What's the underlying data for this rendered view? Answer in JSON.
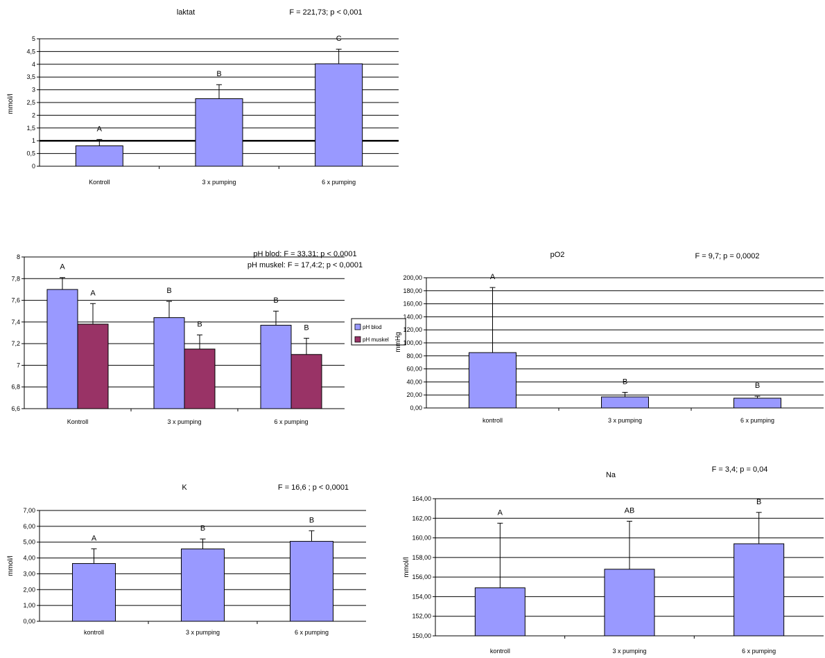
{
  "chart_data": [
    {
      "id": "laktat",
      "type": "bar",
      "title": "laktat",
      "stat": "F = 221,73; p < 0,001",
      "ylabel": "mmol/l",
      "ylim": [
        0,
        5
      ],
      "ytick_step": 0.5,
      "ytick_labels": [
        "0",
        "0,5",
        "1",
        "1,5",
        "2",
        "2,5",
        "3",
        "3,5",
        "4",
        "4,5",
        "5"
      ],
      "categories": [
        "Kontroll",
        "3 x pumping",
        "6 x pumping"
      ],
      "series": [
        {
          "values": [
            0.8,
            2.65,
            4.02
          ],
          "errors": [
            0.25,
            0.55,
            0.57
          ],
          "labels": [
            "A",
            "B",
            "C"
          ],
          "color": "#9999ff"
        }
      ],
      "reference_line": 1,
      "grid": true
    },
    {
      "id": "ph",
      "type": "bar",
      "title": "",
      "stat_lines": [
        "pH blod: F = 33,31; p < 0,0001",
        "pH muskel: F = 17,4:2; p < 0,0001"
      ],
      "ylabel": "",
      "ylim": [
        6.6,
        8
      ],
      "ytick_step": 0.2,
      "ytick_labels": [
        "6,6",
        "6,8",
        "7",
        "7,2",
        "7,4",
        "7,6",
        "7,8",
        "8"
      ],
      "categories": [
        "Kontroll",
        "3 x pumping",
        "6 x pumping"
      ],
      "series": [
        {
          "name": "pH blod",
          "values": [
            7.7,
            7.44,
            7.37
          ],
          "errors": [
            0.11,
            0.15,
            0.13
          ],
          "labels": [
            "A",
            "B",
            "B"
          ],
          "color": "#9999ff"
        },
        {
          "name": "pH muskel",
          "values": [
            7.38,
            7.15,
            7.1
          ],
          "errors": [
            0.19,
            0.13,
            0.15
          ],
          "labels": [
            "A",
            "B",
            "B"
          ],
          "color": "#993366"
        }
      ],
      "legend": "right",
      "grid": true
    },
    {
      "id": "po2",
      "type": "bar",
      "title": "pO2",
      "stat": "F = 9,7; p = 0,0002",
      "ylabel": "mmHg",
      "ylim": [
        0,
        200
      ],
      "ytick_step": 20,
      "ytick_labels": [
        "0,00",
        "20,00",
        "40,00",
        "60,00",
        "80,00",
        "100,00",
        "120,00",
        "140,00",
        "160,00",
        "180,00",
        "200,00"
      ],
      "categories": [
        "kontroll",
        "3 x pumping",
        "6 x pumping"
      ],
      "series": [
        {
          "values": [
            85,
            17,
            15
          ],
          "errors": [
            100,
            7,
            3
          ],
          "labels": [
            "A",
            "B",
            "B"
          ],
          "color": "#9999ff"
        }
      ],
      "grid": true
    },
    {
      "id": "k",
      "type": "bar",
      "title": "K",
      "stat": "F = 16,6 ; p < 0,0001",
      "ylabel": "mmol/l",
      "ylim": [
        0,
        7
      ],
      "ytick_step": 1,
      "ytick_labels": [
        "0,00",
        "1,00",
        "2,00",
        "3,00",
        "4,00",
        "5,00",
        "6,00",
        "7,00"
      ],
      "categories": [
        "kontroll",
        "3 x pumping",
        "6 x pumping"
      ],
      "series": [
        {
          "values": [
            3.65,
            4.57,
            5.05
          ],
          "errors": [
            0.93,
            0.63,
            0.67
          ],
          "labels": [
            "A",
            "B",
            "B"
          ],
          "color": "#9999ff"
        }
      ],
      "grid": true
    },
    {
      "id": "na",
      "type": "bar",
      "title": "Na",
      "stat": "F = 3,4; p = 0,04",
      "ylabel": "mmol/l",
      "ylim": [
        150,
        164
      ],
      "ytick_step": 2,
      "ytick_labels": [
        "150,00",
        "152,00",
        "154,00",
        "156,00",
        "158,00",
        "160,00",
        "162,00",
        "164,00"
      ],
      "categories": [
        "kontroll",
        "3 x pumping",
        "6 x pumping"
      ],
      "series": [
        {
          "values": [
            154.9,
            156.8,
            159.4
          ],
          "errors": [
            6.6,
            4.9,
            3.2
          ],
          "labels": [
            "A",
            "AB",
            "B"
          ],
          "color": "#9999ff"
        }
      ],
      "grid": true
    }
  ]
}
